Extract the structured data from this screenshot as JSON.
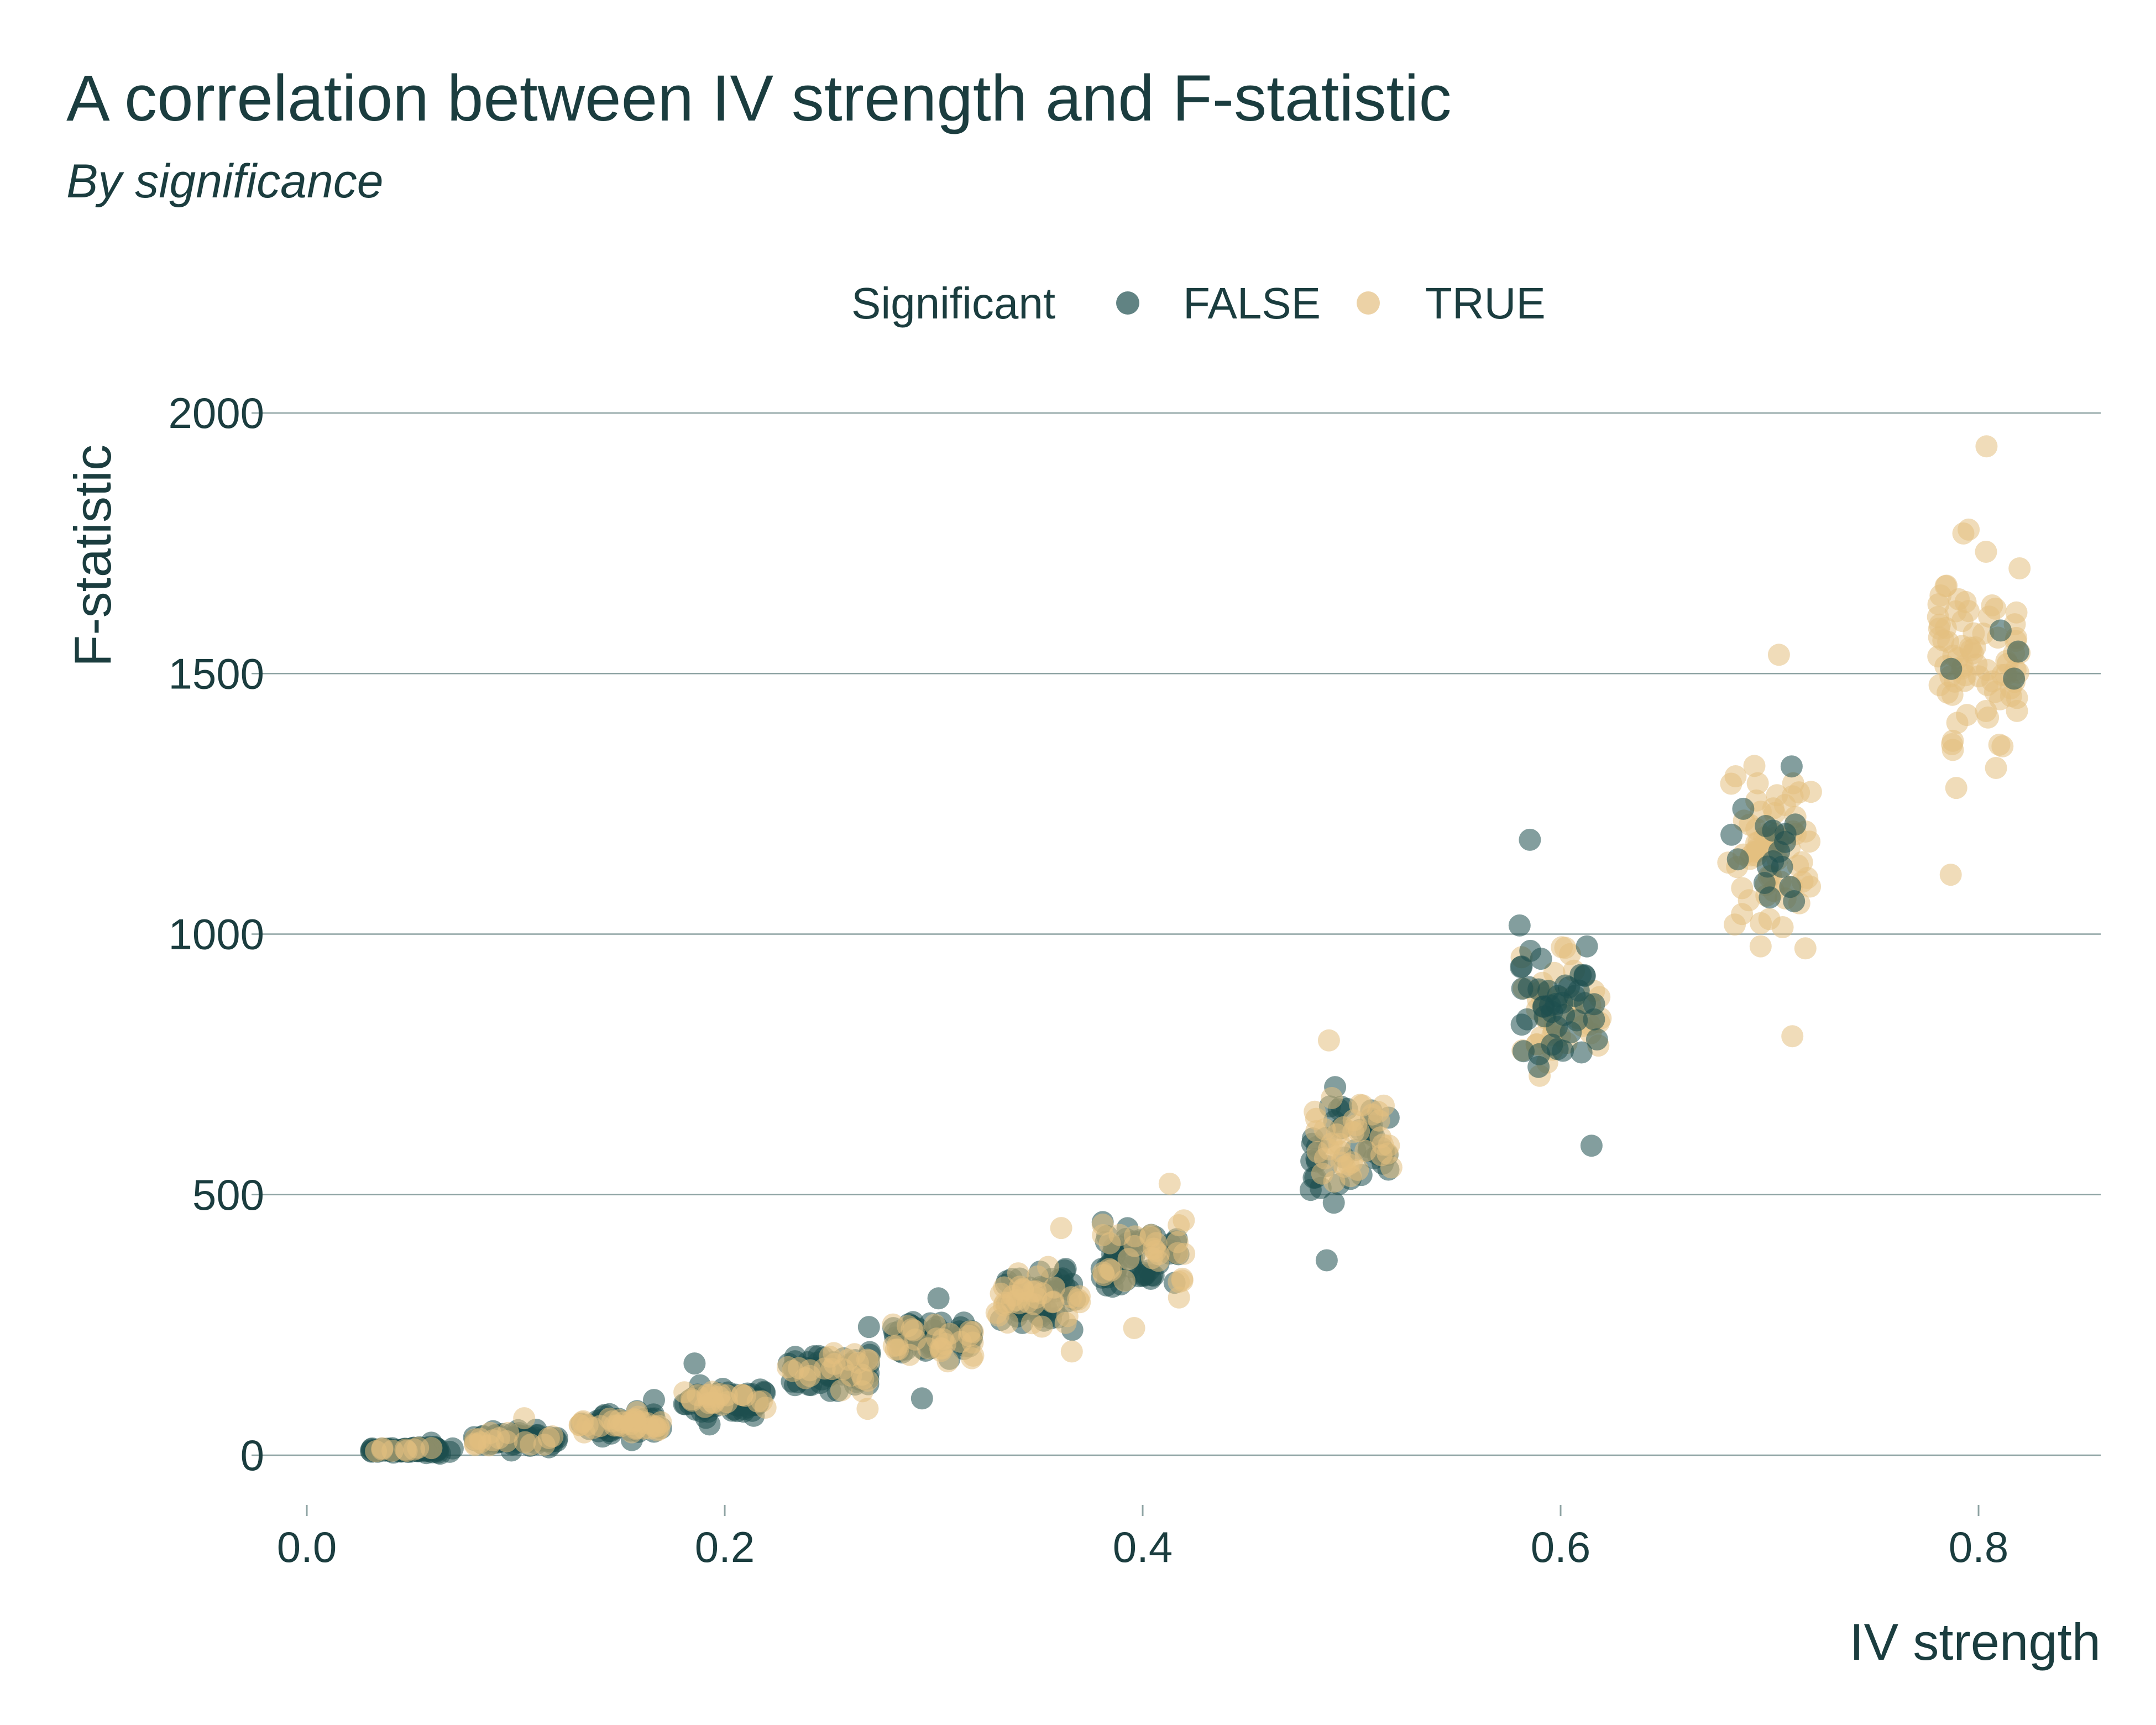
{
  "chart_data": {
    "type": "scatter",
    "title": "A correlation between IV strength and F-statistic",
    "subtitle": "By significance",
    "xlabel": "IV strength",
    "ylabel": "F-statistic",
    "xlim": [
      0.0,
      0.85
    ],
    "ylim": [
      0,
      2000
    ],
    "x_ticks": [
      "0.0",
      "0.2",
      "0.4",
      "0.6",
      "0.8"
    ],
    "y_ticks": [
      "0",
      "500",
      "1000",
      "1500",
      "2000"
    ],
    "grid": "horizontal",
    "legend": {
      "title": "Significant",
      "position": "top",
      "entries": [
        "FALSE",
        "TRUE"
      ]
    },
    "colors": {
      "FALSE": "#1e4f4e",
      "TRUE": "#e4bf80",
      "text": "#1b3d3f",
      "grid": "#8ea3a3"
    },
    "groups": [
      {
        "x": 0.05,
        "f_min": 0,
        "f_max": 28,
        "f_center": 10,
        "share_true": 0.1
      },
      {
        "x": 0.1,
        "f_min": 5,
        "f_max": 75,
        "f_center": 30,
        "share_true": 0.2
      },
      {
        "x": 0.15,
        "f_min": 25,
        "f_max": 110,
        "f_center": 60,
        "share_true": 0.35
      },
      {
        "x": 0.2,
        "f_min": 55,
        "f_max": 180,
        "f_center": 105,
        "share_true": 0.3
      },
      {
        "x": 0.25,
        "f_min": 85,
        "f_max": 250,
        "f_center": 160,
        "share_true": 0.3
      },
      {
        "x": 0.3,
        "f_min": 105,
        "f_max": 305,
        "f_center": 220,
        "share_true": 0.3
      },
      {
        "x": 0.35,
        "f_min": 195,
        "f_max": 440,
        "f_center": 300,
        "share_true": 0.45
      },
      {
        "x": 0.4,
        "f_min": 240,
        "f_max": 525,
        "f_center": 380,
        "share_true": 0.35
      },
      {
        "x": 0.5,
        "f_min": 370,
        "f_max": 800,
        "f_center": 600,
        "share_true": 0.45
      },
      {
        "x": 0.6,
        "f_min": 590,
        "f_max": 1185,
        "f_center": 860,
        "share_true": 0.6
      },
      {
        "x": 0.7,
        "f_min": 800,
        "f_max": 1540,
        "f_center": 1180,
        "share_true": 0.85
      },
      {
        "x": 0.8,
        "f_min": 1110,
        "f_max": 1940,
        "f_center": 1530,
        "share_true": 0.95
      }
    ]
  }
}
